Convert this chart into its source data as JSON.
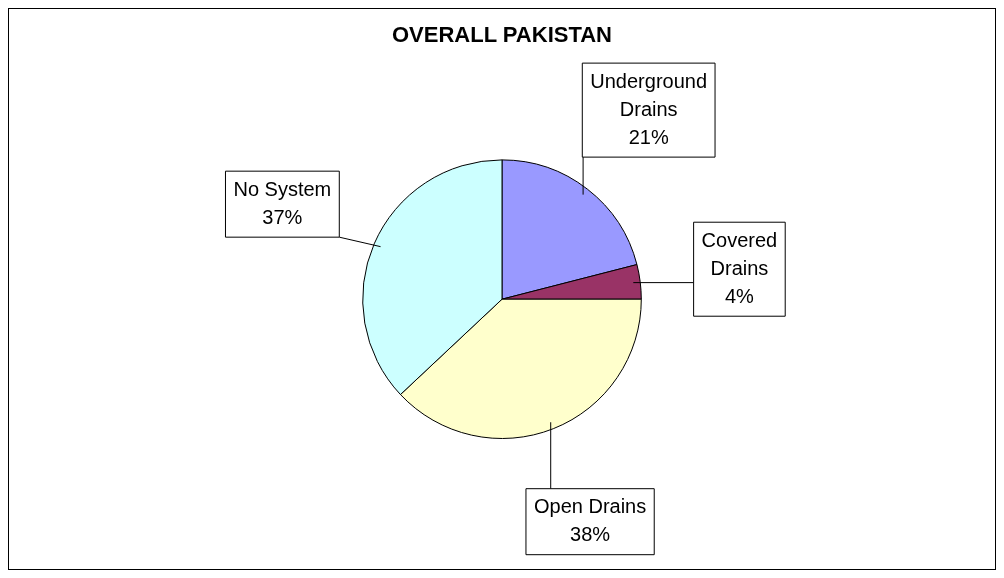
{
  "chart_data": {
    "type": "pie",
    "title": "OVERALL PAKISTAN",
    "categories": [
      "Underground Drains",
      "Covered Drains",
      "Open Drains",
      "No System"
    ],
    "values": [
      21,
      4,
      38,
      37
    ],
    "value_labels": [
      "21%",
      "4%",
      "38%",
      "37%"
    ],
    "colors": [
      "#9999ff",
      "#993366",
      "#ffffcc",
      "#ccffff"
    ],
    "legend": false
  }
}
